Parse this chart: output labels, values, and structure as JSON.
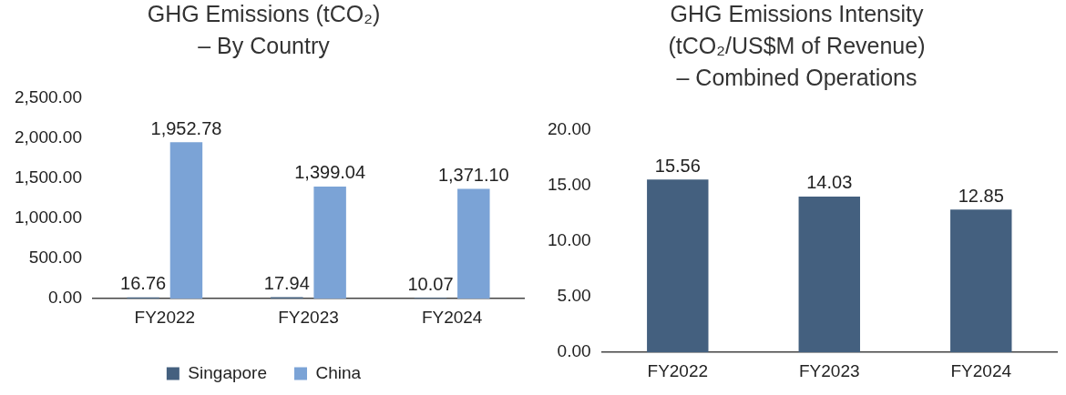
{
  "chart_data": [
    {
      "type": "bar",
      "title": "GHG Emissions (tCO₂)\n– By Country",
      "categories": [
        "FY2022",
        "FY2023",
        "FY2024"
      ],
      "series": [
        {
          "name": "Singapore",
          "color": "#44607f",
          "values": [
            16.76,
            17.94,
            10.07
          ],
          "value_labels": [
            "16.76",
            "17.94",
            "10.07"
          ]
        },
        {
          "name": "China",
          "color": "#7ba3d6",
          "values": [
            1952.78,
            1399.04,
            1371.1
          ],
          "value_labels": [
            "1,952.78",
            "1,399.04",
            "1,371.10"
          ]
        }
      ],
      "ylim": [
        0,
        2500
      ],
      "yticks": [
        {
          "value": 0,
          "label": "0.00"
        },
        {
          "value": 500,
          "label": "500.00"
        },
        {
          "value": 1000,
          "label": "1,000.00"
        },
        {
          "value": 1500,
          "label": "1,500.00"
        },
        {
          "value": 2000,
          "label": "2,000.00"
        },
        {
          "value": 2500,
          "label": "2,500.00"
        }
      ],
      "grid": false,
      "legend": "bottom"
    },
    {
      "type": "bar",
      "title": "GHG Emissions Intensity\n(tCO₂/US$M of Revenue)\n– Combined Operations",
      "categories": [
        "FY2022",
        "FY2023",
        "FY2024"
      ],
      "values": [
        15.56,
        14.03,
        12.85
      ],
      "color": "#44607f",
      "data_labels": true,
      "ylim": [
        0,
        20
      ],
      "yticks": [
        {
          "value": 0,
          "label": "0.00"
        },
        {
          "value": 5,
          "label": "5.00"
        },
        {
          "value": 10,
          "label": "10.00"
        },
        {
          "value": 15,
          "label": "15.00"
        },
        {
          "value": 20,
          "label": "20.00"
        }
      ],
      "grid": false,
      "legend": false
    }
  ]
}
